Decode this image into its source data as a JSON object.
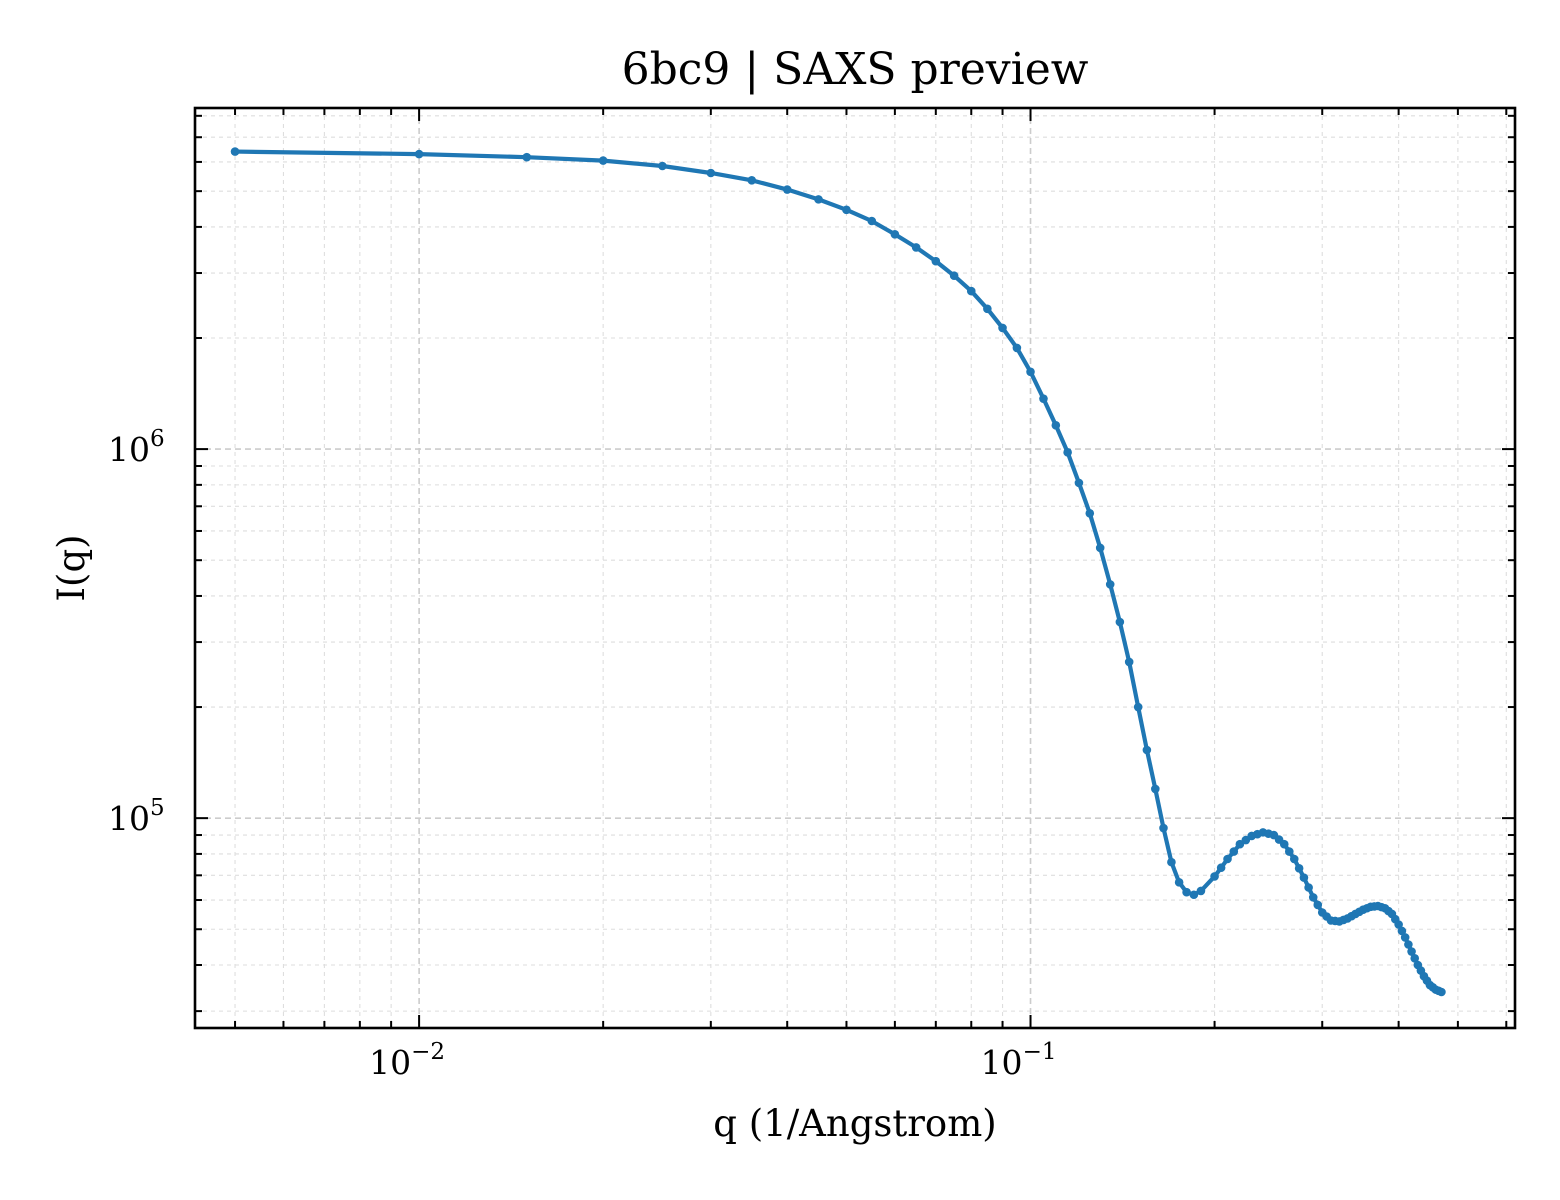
{
  "chart_data": {
    "type": "line",
    "title": "6bc9 | SAXS preview",
    "xlabel": "q (1/Angstrom)",
    "ylabel": "I(q)",
    "xscale": "log",
    "yscale": "log",
    "xlim": [
      0.0043,
      0.62
    ],
    "ylim": [
      27000,
      8400000
    ],
    "grid": true,
    "line_color": "#1f77b4",
    "x_ticks": [
      {
        "value": 0.01,
        "base": "10",
        "exp": "−2"
      },
      {
        "value": 0.1,
        "base": "10",
        "exp": "−1"
      }
    ],
    "y_ticks": [
      {
        "value": 100000,
        "base": "10",
        "exp": "5"
      },
      {
        "value": 1000000,
        "base": "10",
        "exp": "6"
      }
    ],
    "series": [
      {
        "anchors": [
          [
            0.005,
            6400000
          ],
          [
            0.01,
            6300000
          ],
          [
            0.015,
            6180000
          ],
          [
            0.02,
            6050000
          ],
          [
            0.025,
            5850000
          ],
          [
            0.03,
            5600000
          ],
          [
            0.035,
            5350000
          ],
          [
            0.04,
            5050000
          ],
          [
            0.045,
            4750000
          ],
          [
            0.05,
            4450000
          ],
          [
            0.055,
            4150000
          ],
          [
            0.06,
            3820000
          ],
          [
            0.065,
            3520000
          ],
          [
            0.07,
            3230000
          ],
          [
            0.075,
            2950000
          ],
          [
            0.08,
            2680000
          ],
          [
            0.085,
            2400000
          ],
          [
            0.09,
            2130000
          ],
          [
            0.095,
            1880000
          ],
          [
            0.1,
            1620000
          ],
          [
            0.105,
            1370000
          ],
          [
            0.11,
            1160000
          ],
          [
            0.115,
            980000
          ],
          [
            0.12,
            810000
          ],
          [
            0.125,
            670000
          ],
          [
            0.13,
            540000
          ],
          [
            0.135,
            430000
          ],
          [
            0.14,
            340000
          ],
          [
            0.145,
            265000
          ],
          [
            0.15,
            200000
          ],
          [
            0.155,
            153000
          ],
          [
            0.16,
            120000
          ],
          [
            0.165,
            94000
          ],
          [
            0.17,
            76000
          ],
          [
            0.175,
            67000
          ],
          [
            0.18,
            63000
          ],
          [
            0.185,
            62000
          ],
          [
            0.19,
            63500
          ],
          [
            0.2,
            69500
          ],
          [
            0.21,
            77500
          ],
          [
            0.22,
            85000
          ],
          [
            0.23,
            89500
          ],
          [
            0.24,
            91500
          ],
          [
            0.25,
            90000
          ],
          [
            0.26,
            85000
          ],
          [
            0.27,
            77500
          ],
          [
            0.28,
            69000
          ],
          [
            0.29,
            61000
          ],
          [
            0.3,
            55500
          ],
          [
            0.31,
            52800
          ],
          [
            0.32,
            52500
          ],
          [
            0.33,
            53500
          ],
          [
            0.34,
            55000
          ],
          [
            0.35,
            56500
          ],
          [
            0.36,
            57500
          ],
          [
            0.37,
            57800
          ],
          [
            0.38,
            57000
          ],
          [
            0.39,
            55000
          ],
          [
            0.4,
            51500
          ],
          [
            0.41,
            47500
          ],
          [
            0.42,
            43500
          ],
          [
            0.43,
            40000
          ],
          [
            0.44,
            37300
          ],
          [
            0.45,
            35300
          ],
          [
            0.46,
            34300
          ],
          [
            0.47,
            33800
          ]
        ]
      }
    ]
  }
}
